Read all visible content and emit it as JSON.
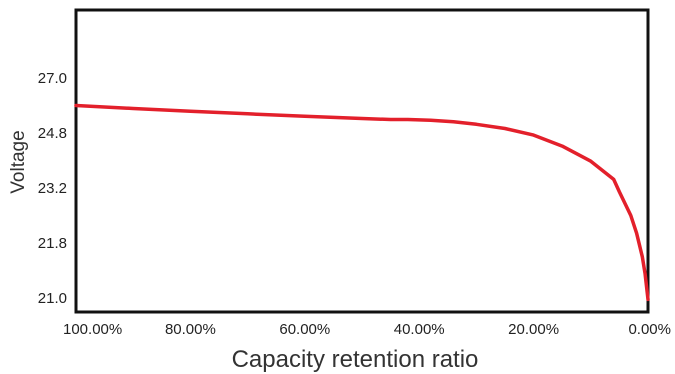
{
  "colors": {
    "line": "#e3202b",
    "frame": "#111111",
    "text": "#222222"
  },
  "chart_data": {
    "type": "line",
    "title": "",
    "xlabel": "Capacity retention ratio",
    "ylabel": "Voltage",
    "x_reversed": true,
    "xlim": [
      100,
      0
    ],
    "x_tick_labels": [
      "100.00%",
      "80.00%",
      "60.00%",
      "40.00%",
      "20.00%",
      "0.00%"
    ],
    "x_tick_values": [
      100,
      80,
      60,
      40,
      20,
      0
    ],
    "y_tick_labels": [
      "27.0",
      "24.8",
      "23.2",
      "21.8",
      "21.0"
    ],
    "y_tick_values": [
      27.0,
      24.8,
      23.2,
      21.8,
      21.0
    ],
    "grid": false,
    "legend": "none",
    "series": [
      {
        "x": [
          100,
          90,
          80,
          70,
          60,
          50,
          45,
          42,
          38,
          34,
          30,
          25,
          20,
          15,
          10,
          6,
          5,
          3,
          2,
          1,
          0.5,
          0
        ],
        "y": [
          25.9,
          25.78,
          25.67,
          25.57,
          25.47,
          25.38,
          25.34,
          25.34,
          25.31,
          25.25,
          25.15,
          24.98,
          24.74,
          24.42,
          23.98,
          23.45,
          23.1,
          22.5,
          22.05,
          21.6,
          21.35,
          20.98
        ]
      }
    ]
  }
}
